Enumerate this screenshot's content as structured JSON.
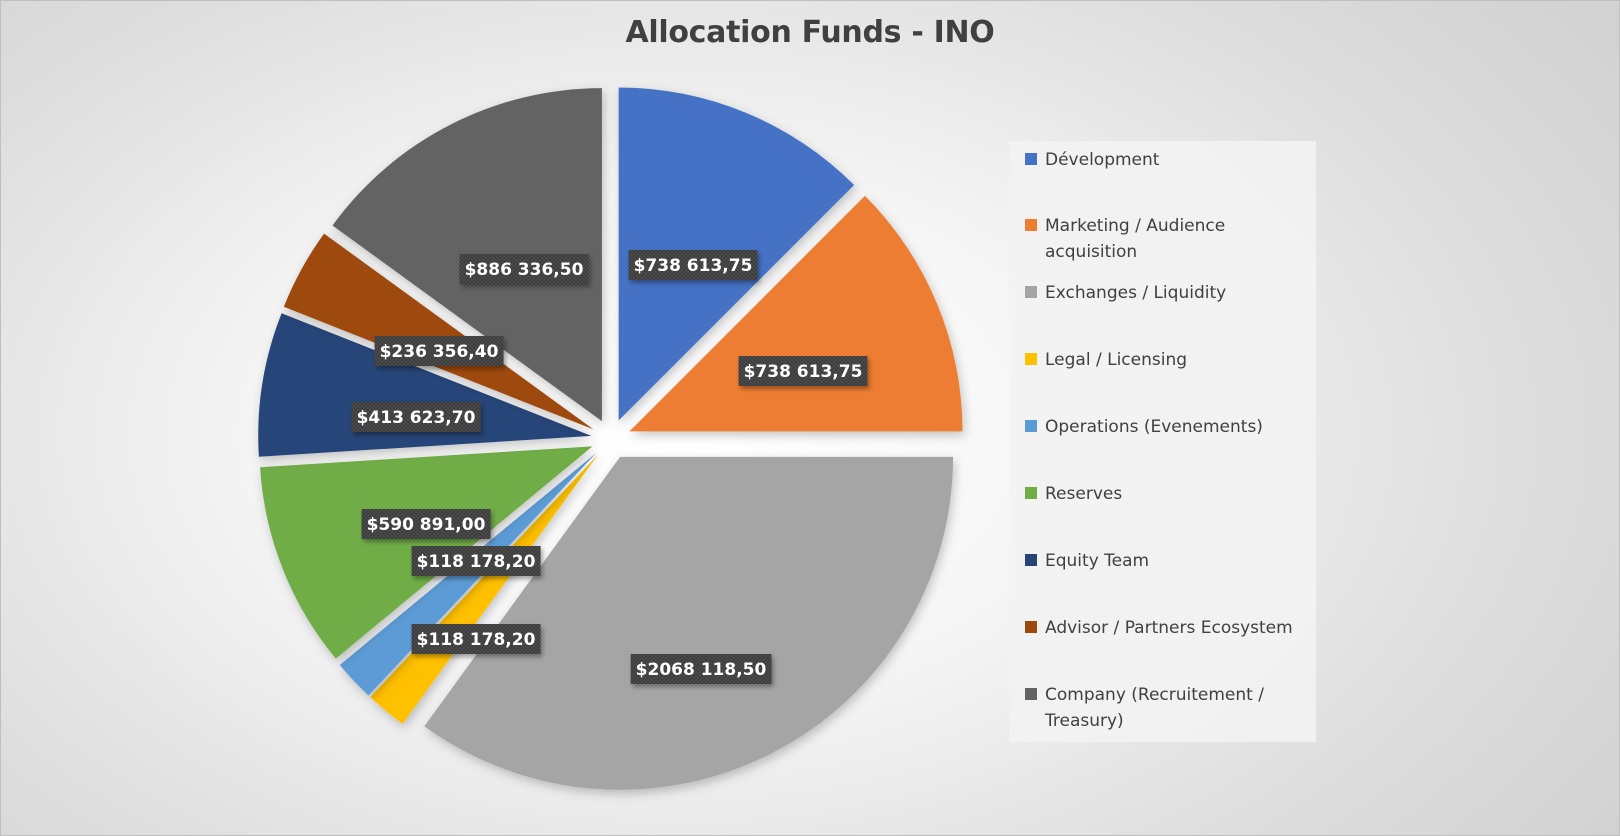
{
  "chart_data": {
    "type": "pie",
    "exploded": true,
    "title": "Allocation Funds - INO",
    "legend_position": "right",
    "categories": [
      "Dévelopment",
      "Marketing / Audience acquisition",
      "Exchanges / Liquidity",
      "Legal / Licensing",
      "Operations (Evenements)",
      "Reserves",
      "Equity Team",
      "Advisor / Partners Ecosystem",
      "Company (Recruitement / Treasury)"
    ],
    "values": [
      738613.75,
      738613.75,
      2068118.5,
      118178.2,
      118178.2,
      590891.0,
      413623.7,
      236356.4,
      886336.5
    ],
    "data_labels": [
      "$738 613,75",
      "$738 613,75",
      "$2068 118,50",
      "$118 178,20",
      "$118 178,20",
      "$590 891,00",
      "$413 623,70",
      "$236 356,40",
      "$886 336,50"
    ],
    "colors": [
      "#4472c4",
      "#ed7d31",
      "#a5a5a5",
      "#ffc000",
      "#5b9bd5",
      "#70ad47",
      "#264478",
      "#9e480e",
      "#636363"
    ]
  }
}
